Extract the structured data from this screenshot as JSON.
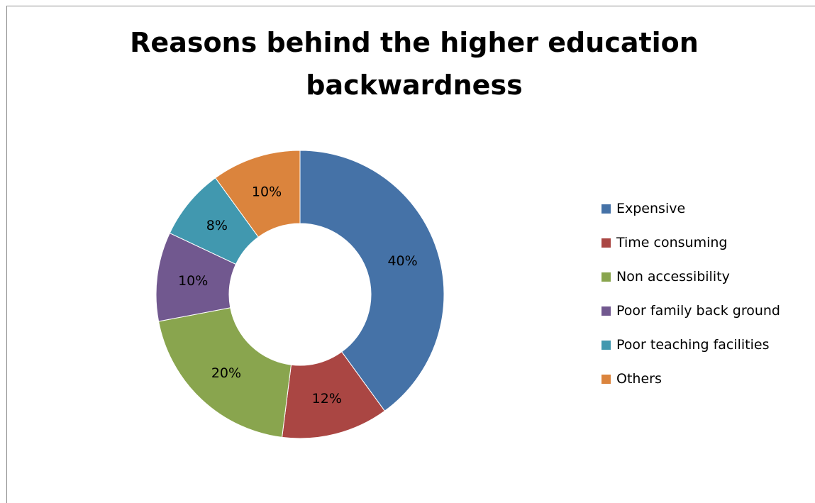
{
  "chart_data": {
    "type": "pie",
    "variant": "donut",
    "title": "Reasons behind the higher education backwardness",
    "title_lines": [
      "Reasons behind the higher education",
      "backwardness"
    ],
    "legend_position": "right",
    "slices": [
      {
        "label": "Expensive",
        "value": 40,
        "data_label": "40%",
        "color": "#4572A7"
      },
      {
        "label": "Time consuming",
        "value": 12,
        "data_label": "12%",
        "color": "#AA4643"
      },
      {
        "label": "Non accessibility",
        "value": 20,
        "data_label": "20%",
        "color": "#89A54E"
      },
      {
        "label": "Poor family back ground",
        "value": 10,
        "data_label": "10%",
        "color": "#71588F"
      },
      {
        "label": "Poor teaching facilities",
        "value": 8,
        "data_label": "8%",
        "color": "#4198AF"
      },
      {
        "label": "Others",
        "value": 10,
        "data_label": "10%",
        "color": "#DB843D"
      }
    ]
  }
}
